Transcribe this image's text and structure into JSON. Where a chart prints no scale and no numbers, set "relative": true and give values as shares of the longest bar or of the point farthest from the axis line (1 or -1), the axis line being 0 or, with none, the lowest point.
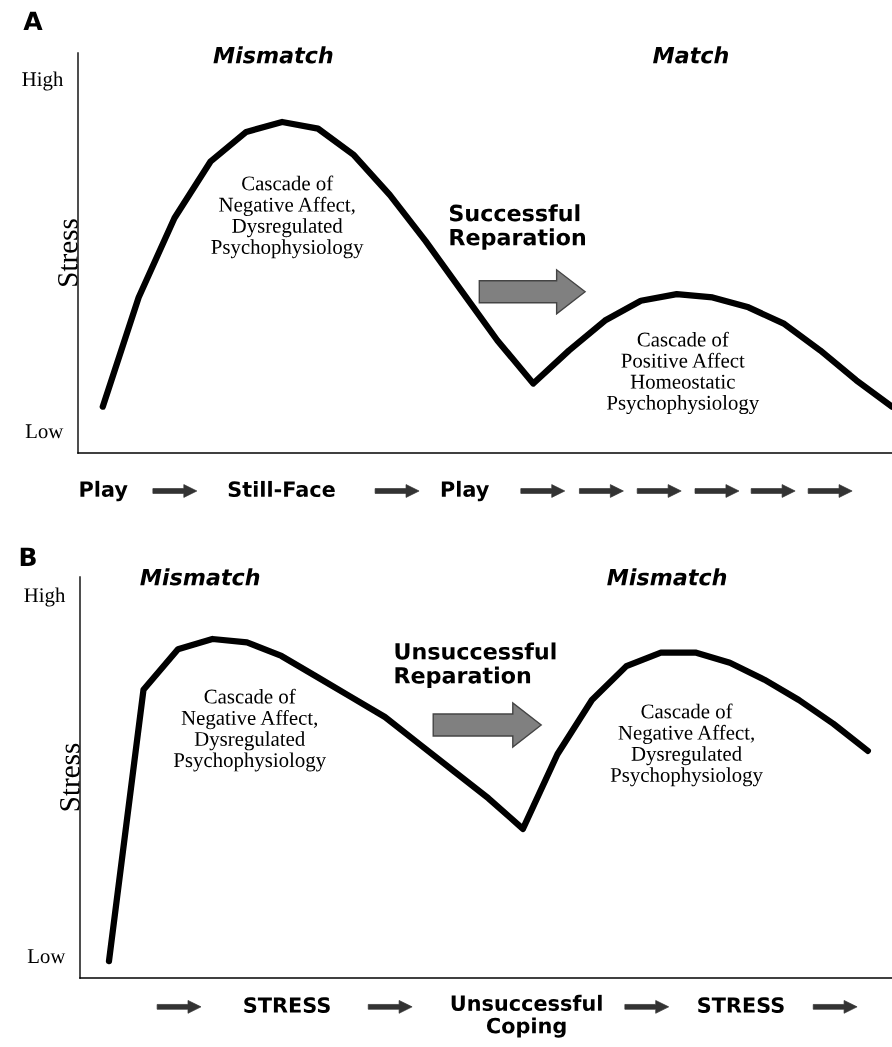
{
  "chart_data": [
    {
      "type": "line",
      "title": "A",
      "ylabel": "Stress",
      "relative": true,
      "categories": [
        null,
        null,
        null,
        null,
        null,
        null,
        null,
        null,
        null,
        null,
        null,
        null,
        null,
        null,
        null,
        null,
        null,
        null,
        null,
        null,
        null,
        null,
        null
      ],
      "series": [
        {
          "color": "#000000",
          "values": [
            0.14,
            0.47,
            0.71,
            0.88,
            0.97,
            1,
            0.98,
            0.9,
            0.78,
            0.64,
            0.49,
            0.34,
            0.21,
            0.31,
            0.4,
            0.46,
            0.48,
            0.47,
            0.44,
            0.39,
            0.31,
            0.22,
            0.14
          ]
        }
      ],
      "annotations": [
        "Mismatch",
        "Match",
        "High",
        "Low",
        "Cascade of\nNegative Affect,\nDysregulated\nPsychophysiology",
        "Successful\nReparation",
        "Cascade of\nPositive Affect\nHomeostatic\nPsychophysiology",
        "Play",
        "Still-Face",
        "Play"
      ]
    },
    {
      "type": "line",
      "title": "B",
      "ylabel": "Stress",
      "relative": true,
      "categories": [
        null,
        null,
        null,
        null,
        null,
        null,
        null,
        null,
        null,
        null,
        null,
        null,
        null,
        null,
        null,
        null,
        null,
        null,
        null,
        null,
        null,
        null,
        null
      ],
      "series": [
        {
          "color": "#000000",
          "values": [
            0.05,
            0.85,
            0.97,
            1,
            0.99,
            0.95,
            0.89,
            0.83,
            0.77,
            0.69,
            0.61,
            0.53,
            0.44,
            0.66,
            0.82,
            0.92,
            0.96,
            0.96,
            0.93,
            0.88,
            0.82,
            0.75,
            0.67
          ]
        }
      ],
      "annotations": [
        "Mismatch",
        "Mismatch",
        "High",
        "Low",
        "Cascade of\nNegative Affect,\nDysregulated\nPsychophysiology",
        "Unsuccessful\nReparation",
        "Cascade of\nNegative Affect,\nDysregulated\nPsychophysiology",
        "STRESS",
        "Unsuccessful\nCoping",
        "STRESS"
      ]
    }
  ]
}
